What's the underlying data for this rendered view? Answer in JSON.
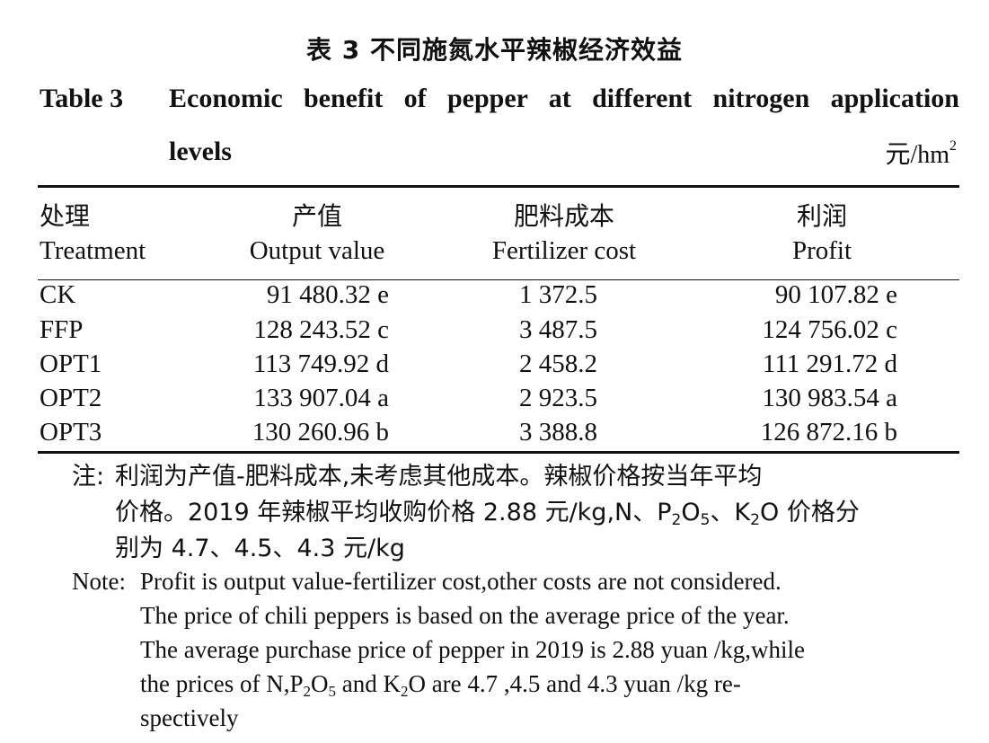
{
  "title": {
    "cn": "表 3   不同施氮水平辣椒经济效益",
    "en_label": "Table 3",
    "en_line1": "Economic benefit of pepper at different nitrogen application",
    "en_line2": "levels",
    "unit_base": "元/hm",
    "unit_sup": "2"
  },
  "table": {
    "headers": [
      {
        "cn": "处理",
        "en": "Treatment"
      },
      {
        "cn": "产值",
        "en": "Output value"
      },
      {
        "cn": "肥料成本",
        "en": "Fertilizer cost"
      },
      {
        "cn": "利润",
        "en": "Profit"
      }
    ],
    "rows": [
      {
        "treatment": "CK",
        "output": "91 480.32 e",
        "cost": "1 372.5",
        "profit": "90 107.82 e"
      },
      {
        "treatment": "FFP",
        "output": "128 243.52 c",
        "cost": "3 487.5",
        "profit": "124 756.02 c"
      },
      {
        "treatment": "OPT1",
        "output": "113 749.92 d",
        "cost": "2 458.2",
        "profit": "111 291.72 d"
      },
      {
        "treatment": "OPT2",
        "output": "133 907.04 a",
        "cost": "2 923.5",
        "profit": "130 983.54 a"
      },
      {
        "treatment": "OPT3",
        "output": "130 260.96 b",
        "cost": "3 388.8",
        "profit": "126 872.16 b"
      }
    ]
  },
  "notes": {
    "cn_label": "注:",
    "cn_line1": "利润为产值-肥料成本,未考虑其他成本。辣椒价格按当年平均",
    "cn_line2_a": "价格。2019 年辣椒平均收购价格 2.88 元/kg,N、P",
    "cn_line2_sub1": "2",
    "cn_line2_b": "O",
    "cn_line2_sub2": "5",
    "cn_line2_c": "、K",
    "cn_line2_sub3": "2",
    "cn_line2_d": "O 价格分",
    "cn_line3": "别为 4.7、4.5、4.3 元/kg",
    "en_label": "Note:",
    "en_line1": "Profit is output value-fertilizer cost,other costs are not considered.",
    "en_line2": "The price of chili peppers is based on the average price of the year.",
    "en_line3": "The average purchase price of pepper in 2019 is 2.88 yuan /kg,while",
    "en_line4_a": "the prices of N,P",
    "en_line4_sub1": "2",
    "en_line4_b": "O",
    "en_line4_sub2": "5",
    "en_line4_c": " and K",
    "en_line4_sub3": "2",
    "en_line4_d": "O are 4.7  ,4.5 and 4.3 yuan /kg re-",
    "en_line5": "spectively"
  }
}
